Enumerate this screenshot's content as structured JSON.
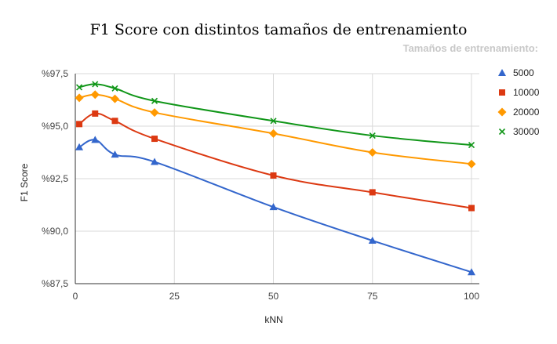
{
  "chart_data": {
    "type": "line",
    "title": "F1 Score  con distintos tamaños de entrenamiento",
    "xlabel": "kNN",
    "ylabel": "F1 Score",
    "xlim": [
      0,
      100
    ],
    "ylim": [
      87.5,
      97.5
    ],
    "x_ticks": [
      0,
      25,
      50,
      75,
      100
    ],
    "x_tick_labels": [
      "0",
      "25",
      "50",
      "75",
      "100"
    ],
    "y_ticks": [
      87.5,
      90,
      92.5,
      95,
      97.5
    ],
    "y_tick_labels": [
      "%87,5",
      "%90,0",
      "%92,5",
      "%95,0",
      "%97,5"
    ],
    "grid": true,
    "legend_title": "Tamaños de entrenamiento:",
    "legend_position": "right",
    "x": [
      1,
      5,
      10,
      20,
      50,
      75,
      100
    ],
    "series": [
      {
        "name": "5000",
        "color": "#3366cc",
        "marker": "triangle",
        "values": [
          94.0,
          94.35,
          93.65,
          93.3,
          91.15,
          89.55,
          88.05
        ]
      },
      {
        "name": "10000",
        "color": "#dc3912",
        "marker": "square",
        "values": [
          95.1,
          95.6,
          95.25,
          94.4,
          92.65,
          91.85,
          91.1
        ]
      },
      {
        "name": "20000",
        "color": "#ff9900",
        "marker": "diamond",
        "values": [
          96.35,
          96.5,
          96.3,
          95.65,
          94.65,
          93.75,
          93.2
        ]
      },
      {
        "name": "30000",
        "color": "#109618",
        "marker": "x",
        "values": [
          96.85,
          97.0,
          96.8,
          96.2,
          95.25,
          94.55,
          94.1
        ]
      }
    ]
  }
}
